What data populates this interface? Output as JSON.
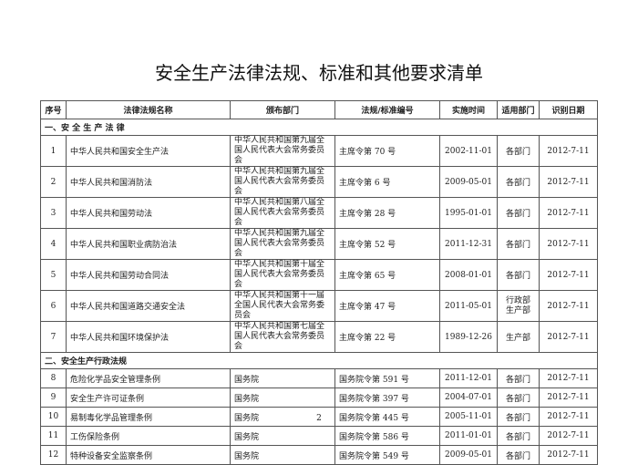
{
  "title": "安全生产法律法规、标准和其他要求清单",
  "headers": [
    "序号",
    "法律法规名称",
    "颁布部门",
    "法规/标准编号",
    "实施时间",
    "适用部门",
    "识别日期"
  ],
  "sections": [
    {
      "title": "一、安 全 生 产 法 律",
      "rows": [
        [
          "1",
          "中华人民共和国安全生产法",
          "中华人民共和国第九届全国人民代表大会常务委员会",
          "主席令第 70 号",
          "2002-11-01",
          "各部门",
          "2012-7-11"
        ],
        [
          "2",
          "中华人民共和国消防法",
          "中华人民共和国第九届全国人民代表大会常务委员会",
          "主席令第 6 号",
          "2009-05-01",
          "各部门",
          "2012-7-11"
        ],
        [
          "3",
          "中华人民共和国劳动法",
          "中华人民共和国第八届全国人民代表大会常务委员会",
          "主席令第 28 号",
          "1995-01-01",
          "各部门",
          "2012-7-11"
        ],
        [
          "4",
          "中华人民共和国职业病防治法",
          "中华人民共和国第九届全国人民代表大会常务委员会",
          "主席令第 52 号",
          "2011-12-31",
          "各部门",
          "2012-7-11"
        ],
        [
          "5",
          "中华人民共和国劳动合同法",
          "中华人民共和国第十届全国人民代表大会常务委员会",
          "主席令第 65 号",
          "2008-01-01",
          "各部门",
          "2012-7-11"
        ],
        [
          "6",
          "中华人民共和国道路交通安全法",
          "中华人民共和国第十一届全国人民代表大会常务委员会",
          "主席令第 47 号",
          "2011-05-01",
          "行政部 生产部",
          "2012-7-11"
        ],
        [
          "7",
          "中华人民共和国环境保护法",
          "中华人民共和国第七届全国人民代表大会常务委员会",
          "主席令第 22 号",
          "1989-12-26",
          "生产部",
          "2012-7-11"
        ]
      ]
    },
    {
      "title": "二、安全生产行政法规",
      "rows": [
        [
          "8",
          "危险化学品安全管理条例",
          "国务院",
          "国务院令第 591 号",
          "2011-12-01",
          "各部门",
          "2012-7-11"
        ],
        [
          "9",
          "安全生产许可证条例",
          "国务院",
          "国务院令第 397 号",
          "2004-07-01",
          "各部门",
          "2012-7-11"
        ],
        [
          "10",
          "易制毒化学品管理条例",
          "国务院",
          "国务院令第 445 号",
          "2005-11-01",
          "各部门",
          "2012-7-11"
        ],
        [
          "11",
          "工伤保险条例",
          "国务院",
          "国务院令第 586 号",
          "2011-01-01",
          "各部门",
          "2012-7-11"
        ],
        [
          "12",
          "特种设备安全监察条例",
          "国务院",
          "国务院令第 549 号",
          "2009-05-01",
          "各部门",
          "2012-7-11"
        ]
      ]
    }
  ],
  "page_number": "2"
}
